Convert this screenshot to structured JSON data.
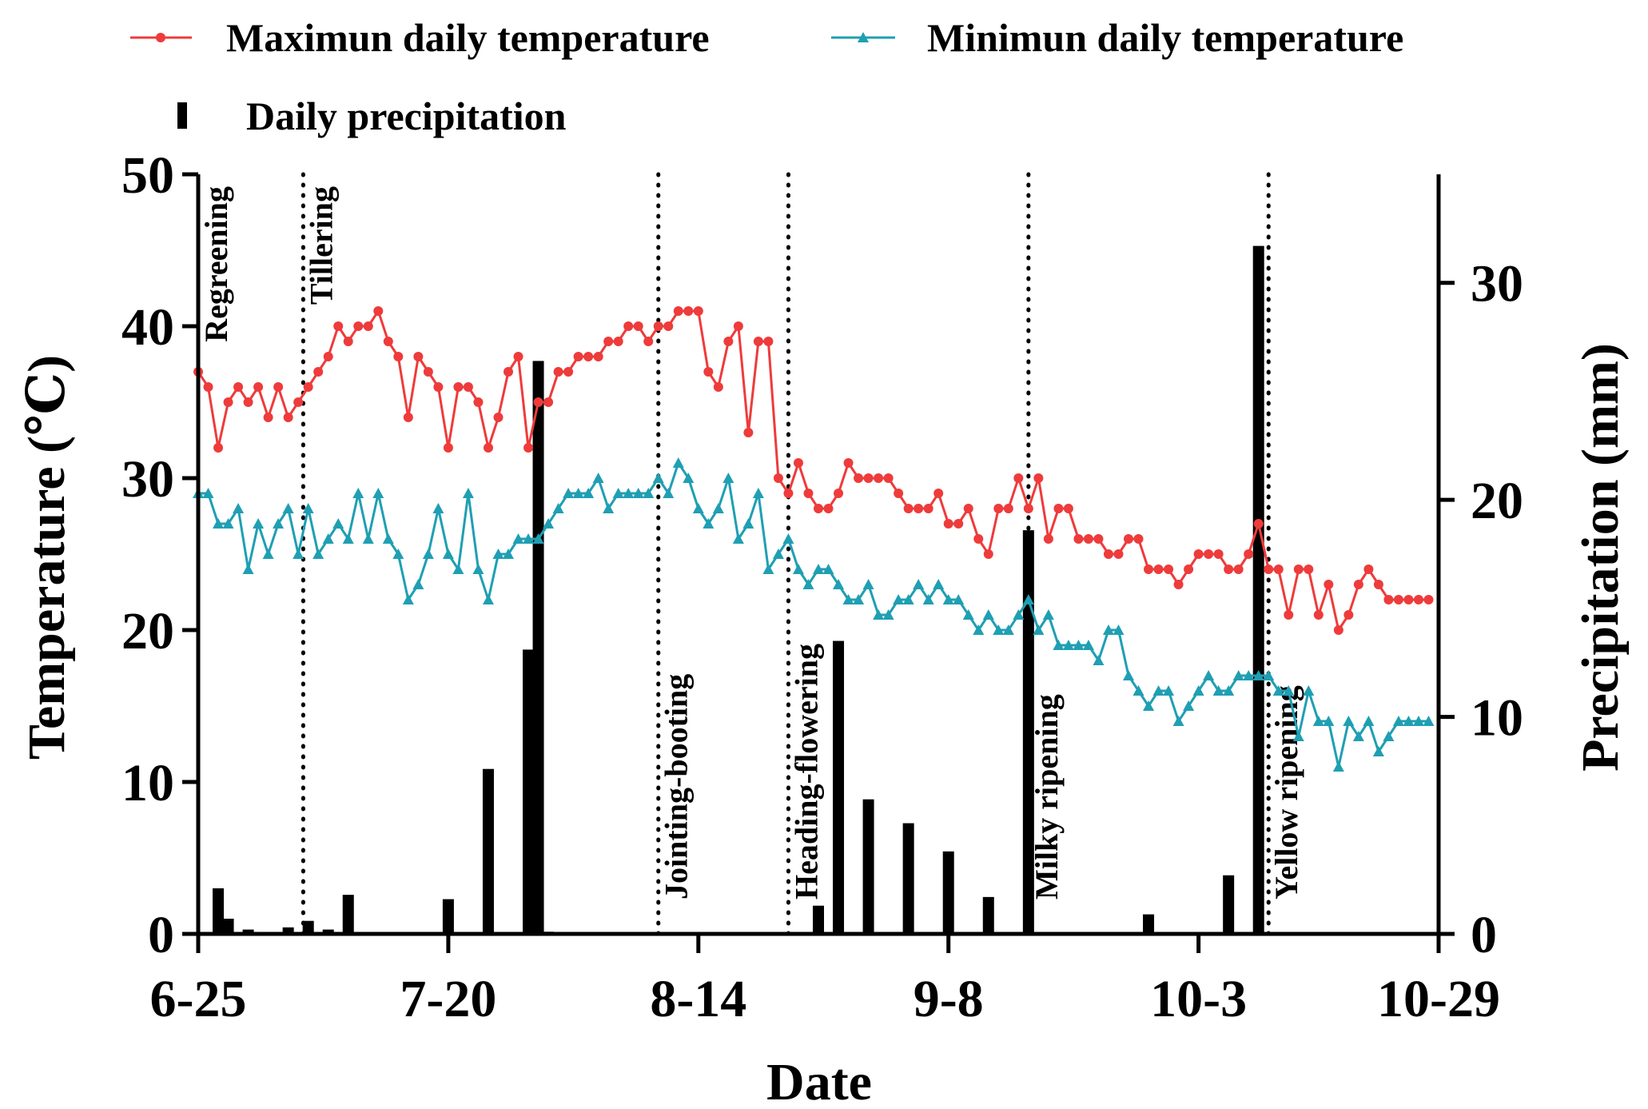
{
  "chart_data": {
    "type": "line+bar",
    "xlabel": "Date",
    "ylabel": "Temperature (℃)",
    "y2label": "Precipitation (mm)",
    "x_ticks": [
      "6-25",
      "7-20",
      "8-14",
      "9-8",
      "10-3",
      "10-29"
    ],
    "x_tick_days": [
      0,
      25,
      50,
      75,
      100,
      124
    ],
    "ylim": [
      0,
      50
    ],
    "y_ticks": [
      0,
      10,
      20,
      30,
      40,
      50
    ],
    "y_tick_labels": [
      "0",
      "10",
      "20",
      "30",
      "40",
      "50"
    ],
    "y2lim": [
      0,
      35
    ],
    "y2_ticks": [
      0,
      10,
      20,
      30
    ],
    "y2_tick_labels": [
      "0",
      "10",
      "20",
      "30"
    ],
    "colors": {
      "max": "#ee3b3b",
      "min": "#1f9fb3",
      "precip": "#000000"
    },
    "legend": {
      "max": "Maximun daily temperature",
      "min": "Minimun daily temperature",
      "precip": "Daily precipitation"
    },
    "stages": [
      {
        "name": "Regreening",
        "day": 0
      },
      {
        "name": "Tillering",
        "day": 10.5
      },
      {
        "name": "Jointing-booting",
        "day": 46
      },
      {
        "name": "Heading-flowering",
        "day": 59
      },
      {
        "name": "Milky ripening",
        "day": 83
      },
      {
        "name": "Yellow ripening",
        "day": 107
      }
    ],
    "series": [
      {
        "name": "Maximun daily temperature",
        "key": "max",
        "x": [
          0,
          1,
          2,
          3,
          4,
          5,
          6,
          7,
          8,
          9,
          10,
          11,
          12,
          13,
          14,
          15,
          16,
          17,
          18,
          19,
          20,
          21,
          22,
          23,
          24,
          25,
          26,
          27,
          28,
          29,
          30,
          31,
          32,
          33,
          34,
          35,
          36,
          37,
          38,
          39,
          40,
          41,
          42,
          43,
          44,
          45,
          46,
          47,
          48,
          49,
          50,
          51,
          52,
          53,
          54,
          55,
          56,
          57,
          58,
          59,
          60,
          61,
          62,
          63,
          64,
          65,
          66,
          67,
          68,
          69,
          70,
          71,
          72,
          73,
          74,
          75,
          76,
          77,
          78,
          79,
          80,
          81,
          82,
          83,
          84,
          85,
          86,
          87,
          88,
          89,
          90,
          91,
          92,
          93,
          94,
          95,
          96,
          97,
          98,
          99,
          100,
          101,
          102,
          103,
          104,
          105,
          106,
          107,
          108,
          109,
          110,
          111,
          112,
          113,
          114,
          115,
          116,
          117,
          118,
          119,
          120,
          121,
          122,
          123
        ],
        "values": [
          37,
          36,
          32,
          35,
          36,
          35,
          36,
          34,
          36,
          34,
          35,
          36,
          37,
          38,
          40,
          39,
          40,
          40,
          41,
          39,
          38,
          34,
          38,
          37,
          36,
          32,
          36,
          36,
          35,
          32,
          34,
          37,
          38,
          32,
          35,
          35,
          37,
          37,
          38,
          38,
          38,
          39,
          39,
          40,
          40,
          39,
          40,
          40,
          41,
          41,
          41,
          37,
          36,
          39,
          40,
          33,
          39,
          39,
          30,
          29,
          31,
          29,
          28,
          28,
          29,
          31,
          30,
          30,
          30,
          30,
          29,
          28,
          28,
          28,
          29,
          27,
          27,
          28,
          26,
          25,
          28,
          28,
          30,
          28,
          30,
          26,
          28,
          28,
          26,
          26,
          26,
          25,
          25,
          26,
          26,
          24,
          24,
          24,
          23,
          24,
          25,
          25,
          25,
          24,
          24,
          25,
          27,
          24,
          24,
          21,
          24,
          24,
          21,
          23,
          20,
          21,
          23,
          24,
          23,
          22,
          22,
          22,
          22,
          22
        ]
      },
      {
        "name": "Minimun daily temperature",
        "key": "min",
        "x": [
          0,
          1,
          2,
          3,
          4,
          5,
          6,
          7,
          8,
          9,
          10,
          11,
          12,
          13,
          14,
          15,
          16,
          17,
          18,
          19,
          20,
          21,
          22,
          23,
          24,
          25,
          26,
          27,
          28,
          29,
          30,
          31,
          32,
          33,
          34,
          35,
          36,
          37,
          38,
          39,
          40,
          41,
          42,
          43,
          44,
          45,
          46,
          47,
          48,
          49,
          50,
          51,
          52,
          53,
          54,
          55,
          56,
          57,
          58,
          59,
          60,
          61,
          62,
          63,
          64,
          65,
          66,
          67,
          68,
          69,
          70,
          71,
          72,
          73,
          74,
          75,
          76,
          77,
          78,
          79,
          80,
          81,
          82,
          83,
          84,
          85,
          86,
          87,
          88,
          89,
          90,
          91,
          92,
          93,
          94,
          95,
          96,
          97,
          98,
          99,
          100,
          101,
          102,
          103,
          104,
          105,
          106,
          107,
          108,
          109,
          110,
          111,
          112,
          113,
          114,
          115,
          116,
          117,
          118,
          119,
          120,
          121,
          122,
          123
        ],
        "values": [
          29,
          29,
          27,
          27,
          28,
          24,
          27,
          25,
          27,
          28,
          25,
          28,
          25,
          26,
          27,
          26,
          29,
          26,
          29,
          26,
          25,
          22,
          23,
          25,
          28,
          25,
          24,
          29,
          24,
          22,
          25,
          25,
          26,
          26,
          26,
          27,
          28,
          29,
          29,
          29,
          30,
          28,
          29,
          29,
          29,
          29,
          30,
          29,
          31,
          30,
          28,
          27,
          28,
          30,
          26,
          27,
          29,
          24,
          25,
          26,
          24,
          23,
          24,
          24,
          23,
          22,
          22,
          23,
          21,
          21,
          22,
          22,
          23,
          22,
          23,
          22,
          22,
          21,
          20,
          21,
          20,
          20,
          21,
          22,
          20,
          21,
          19,
          19,
          19,
          19,
          18,
          20,
          20,
          17,
          16,
          15,
          16,
          16,
          14,
          15,
          16,
          17,
          16,
          16,
          17,
          17,
          17,
          17,
          16,
          16,
          13,
          16,
          14,
          14,
          11,
          14,
          13,
          14,
          12,
          13,
          14,
          14,
          14,
          14
        ]
      },
      {
        "name": "Daily precipitation",
        "key": "precip",
        "x": [
          2,
          3,
          5,
          9,
          11,
          13,
          15,
          25,
          29,
          33,
          34,
          35,
          62,
          64,
          67,
          71,
          75,
          79,
          83,
          95,
          103,
          106
        ],
        "values": [
          2.1,
          0.7,
          0.2,
          0.3,
          0.6,
          0.2,
          1.8,
          1.6,
          7.6,
          13.1,
          26.4,
          0.1,
          1.3,
          13.5,
          6.2,
          5.1,
          3.8,
          1.7,
          18.6,
          0.9,
          2.7,
          31.7
        ]
      }
    ]
  }
}
